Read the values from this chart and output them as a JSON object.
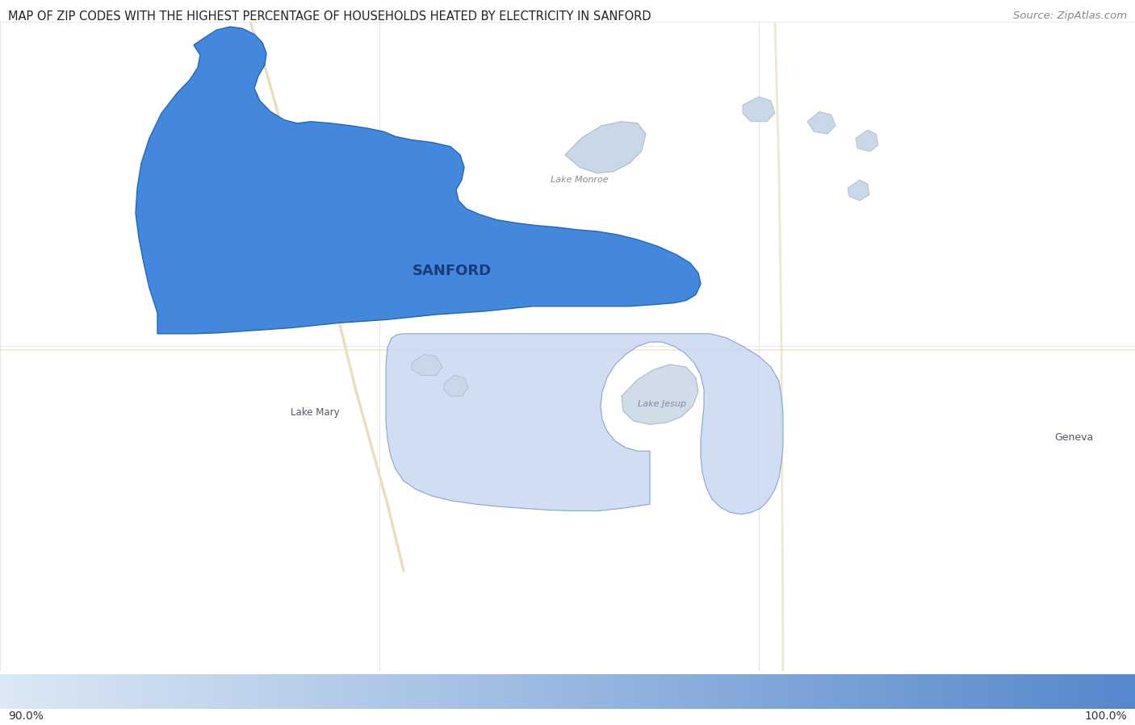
{
  "title": "MAP OF ZIP CODES WITH THE HIGHEST PERCENTAGE OF HOUSEHOLDS HEATED BY ELECTRICITY IN SANFORD",
  "source_text": "Source: ZipAtlas.com",
  "title_fontsize": 10.5,
  "source_fontsize": 9.5,
  "colorbar_min": 90.0,
  "colorbar_max": 100.0,
  "colorbar_label_min": "90.0%",
  "colorbar_label_max": "100.0%",
  "map_bg_color": "#f5f2ed",
  "water_color_dark": "#c8d8e8",
  "water_color_light": "#d8e5ef",
  "dark_blue": "#4488dd",
  "light_blue": "#c8d8f0",
  "colorbar_color_left": "#dce8f5",
  "colorbar_color_right": "#5588cc",
  "road_color": "#e8dfc0",
  "grid_line_color": "#e0ddd8",
  "sanford_label": "SANFORD",
  "lake_monroe_label": "Lake Monroe",
  "lake_mary_label": "Lake Mary",
  "lake_jesup_label": "Lake Jesup",
  "geneva_label": "Geneva",
  "title_color": "#222222",
  "label_color": "#666666",
  "sanford_label_color": "#1a3a7a",
  "fig_width": 14.06,
  "fig_height": 8.99,
  "map_xlim": [
    0,
    1406
  ],
  "map_ylim": [
    0,
    820
  ]
}
